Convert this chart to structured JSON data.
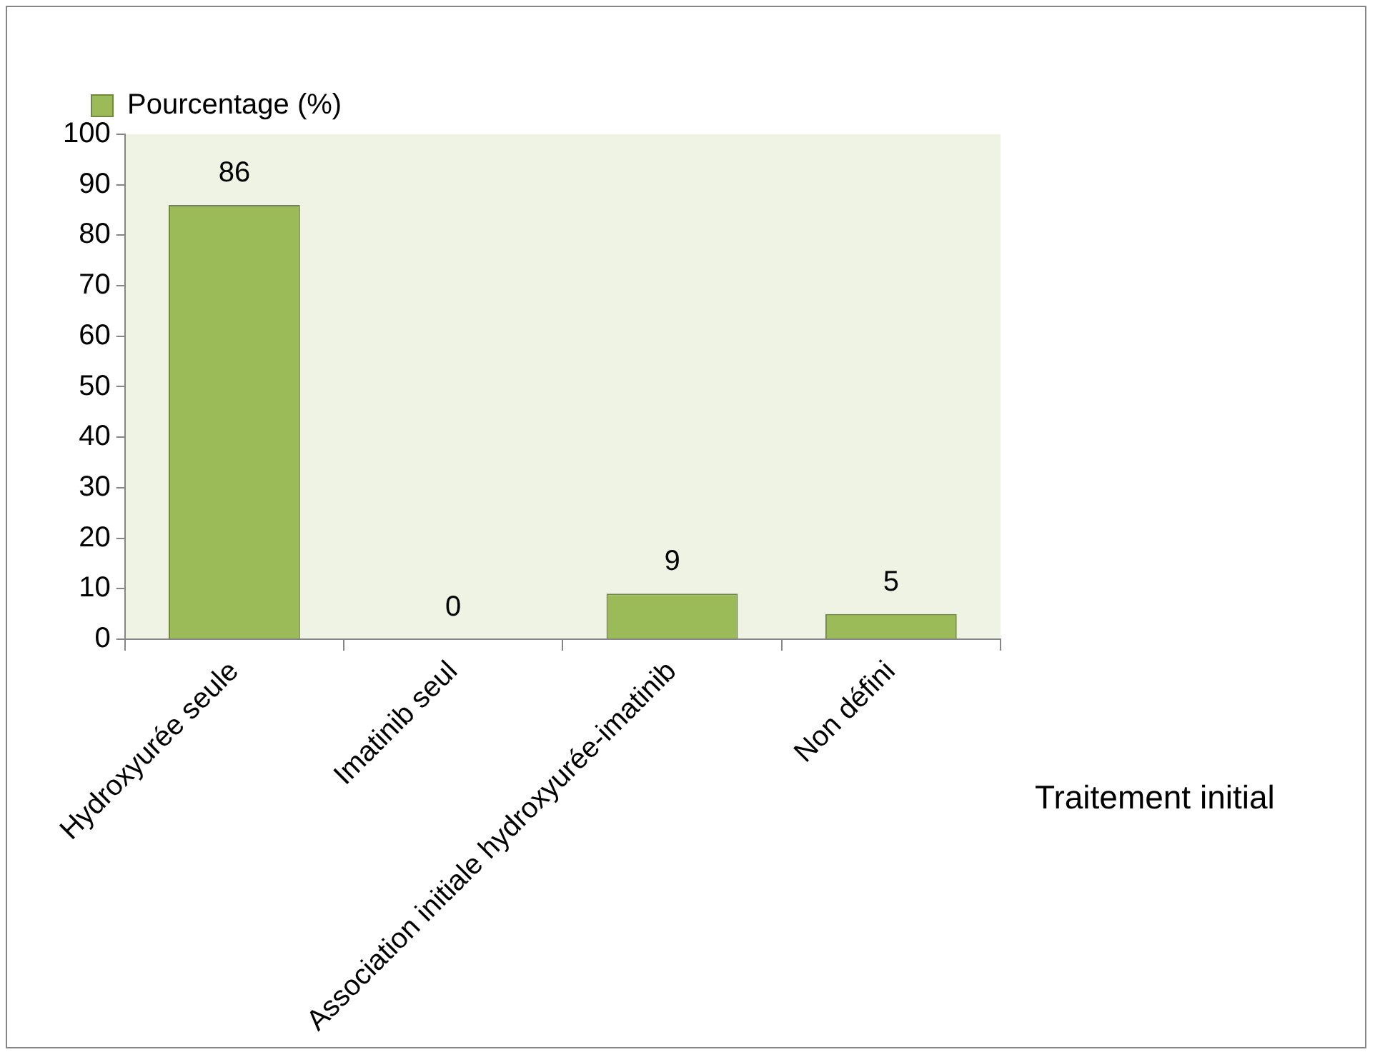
{
  "chart_data": {
    "type": "bar",
    "categories": [
      "Hydroxyurée seule",
      "Imatinib seul",
      "Association initiale hydroxyurée-imatinib",
      "Non défini"
    ],
    "series": [
      {
        "name": "Pourcentage (%)",
        "color": "#9bbb59",
        "values": [
          86,
          0,
          9,
          5
        ]
      }
    ],
    "xlabel": "Traitement initial",
    "ylim": [
      0,
      100
    ],
    "yticks": [
      0,
      10,
      20,
      30,
      40,
      50,
      60,
      70,
      80,
      90,
      100
    ],
    "data_labels": true,
    "legend": "top left",
    "grid": false
  }
}
